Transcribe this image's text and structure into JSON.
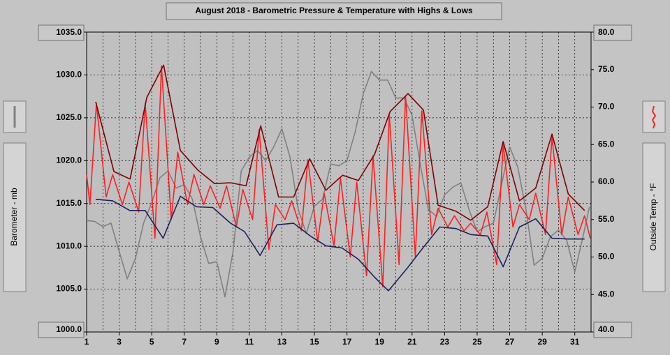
{
  "chart_data": {
    "type": "line",
    "title": "August 2018 - Barometric Pressure & Temperature with Highs & Lows",
    "y_label": "Barometer - mb",
    "y2_label": "Outside Temp - °F",
    "xlim": [
      1,
      32
    ],
    "xticks": [
      1,
      3,
      5,
      7,
      9,
      11,
      13,
      15,
      17,
      19,
      21,
      23,
      25,
      27,
      29,
      31
    ],
    "ylim": [
      1000,
      1035
    ],
    "yticks": [
      {
        "value": 1000,
        "label": "1000.0"
      },
      {
        "value": 1005,
        "label": "1005.0"
      },
      {
        "value": 1010,
        "label": "1010.0"
      },
      {
        "value": 1015,
        "label": "1015.0"
      },
      {
        "value": 1020,
        "label": "1020.0"
      },
      {
        "value": 1025,
        "label": "1025.0"
      },
      {
        "value": 1030,
        "label": "1030.0"
      },
      {
        "value": 1035,
        "label": "1035.0"
      }
    ],
    "y2lim": [
      40,
      80
    ],
    "y2ticks": [
      {
        "value": 40,
        "label": "40.0"
      },
      {
        "value": 45,
        "label": "45.0"
      },
      {
        "value": 50,
        "label": "50.0"
      },
      {
        "value": 55,
        "label": "55.0"
      },
      {
        "value": 60,
        "label": "60.0"
      },
      {
        "value": 65,
        "label": "65.0"
      },
      {
        "value": 70,
        "label": "70.0"
      },
      {
        "value": 75,
        "label": "75.0"
      },
      {
        "value": 80,
        "label": "80.0"
      }
    ],
    "grid": true,
    "series": [
      {
        "color": "#808080",
        "axis": "y",
        "x": [
          1,
          1.5,
          2,
          2.5,
          3,
          3.5,
          4,
          4.5,
          5,
          5.5,
          6,
          6.5,
          7,
          7.5,
          8,
          8.5,
          9,
          9.5,
          10,
          10.5,
          11,
          11.5,
          12,
          12.5,
          13,
          13.5,
          14,
          14.5,
          15,
          15.5,
          16,
          16.5,
          17,
          17.5,
          18,
          18.5,
          19,
          19.5,
          20,
          20.5,
          21,
          21.5,
          22,
          22.5,
          23,
          23.5,
          24,
          24.5,
          25,
          25.5,
          26,
          26.5,
          27,
          27.5,
          28,
          28.5,
          29,
          29.5,
          30,
          30.5,
          31,
          31.5,
          31.9
        ],
        "values": [
          1013.0,
          1012.9,
          1012.3,
          1012.7,
          1009.4,
          1006.2,
          1008.6,
          1012.7,
          1015.1,
          1018.0,
          1018.8,
          1016.8,
          1017.2,
          1015.5,
          1011.1,
          1008.0,
          1008.2,
          1004.1,
          1009.4,
          1018.8,
          1020.4,
          1021.2,
          1020.0,
          1021.6,
          1023.7,
          1020.4,
          1014.3,
          1011.5,
          1014.7,
          1015.5,
          1019.6,
          1019.4,
          1020.0,
          1023.3,
          1027.8,
          1030.4,
          1029.4,
          1029.4,
          1027.3,
          1027.3,
          1025.3,
          1019.6,
          1014.3,
          1013.5,
          1016.0,
          1016.9,
          1017.4,
          1014.3,
          1011.7,
          1012.3,
          1012.7,
          1017.2,
          1021.6,
          1019.2,
          1014.3,
          1007.8,
          1008.6,
          1011.1,
          1011.9,
          1010.7,
          1007.0,
          1011.1,
          1014.6
        ]
      },
      {
        "color": "#ff2020",
        "axis": "y2",
        "x": [
          1,
          1.2,
          1.6,
          2.2,
          2.6,
          3.2,
          3.6,
          4.2,
          4.6,
          5.2,
          5.6,
          6.2,
          6.6,
          7.2,
          7.6,
          8.2,
          8.6,
          9.2,
          9.6,
          10.2,
          10.6,
          11.2,
          11.6,
          12.2,
          12.6,
          13.2,
          13.6,
          14.2,
          14.6,
          15.2,
          15.6,
          16.2,
          16.6,
          17.2,
          17.6,
          18.2,
          18.6,
          19.2,
          19.6,
          20.2,
          20.6,
          21.2,
          21.6,
          22.2,
          22.6,
          23.2,
          23.6,
          24.2,
          24.6,
          25.2,
          25.6,
          26.2,
          26.6,
          27.2,
          27.6,
          28.2,
          28.6,
          29.2,
          29.6,
          30.2,
          30.6,
          31.2,
          31.6,
          31.95
        ],
        "values": [
          61,
          57,
          70.5,
          58,
          61,
          57,
          60,
          56,
          70.5,
          52.5,
          75.5,
          55,
          64,
          57,
          61,
          57,
          59.5,
          56.5,
          59.5,
          54,
          59,
          55,
          67,
          51,
          57,
          55,
          57.5,
          53.5,
          63,
          52,
          58.5,
          51.5,
          60.5,
          50,
          60,
          47.5,
          63.5,
          46,
          69,
          49,
          71.5,
          50,
          69.5,
          53,
          56.5,
          54,
          55.5,
          53.5,
          54.5,
          53,
          56,
          49,
          65,
          54,
          57,
          55,
          58.5,
          53,
          66,
          53,
          58,
          53,
          55.5,
          52.5
        ]
      },
      {
        "color": "#800000",
        "axis": "y2",
        "x": [
          1.56,
          2.68,
          3.67,
          4.7,
          5.73,
          6.76,
          7.83,
          8.86,
          9.85,
          10.8,
          11.7,
          12.8,
          13.72,
          14.71,
          15.7,
          16.73,
          17.7,
          18.7,
          19.65,
          20.75,
          21.7,
          22.6,
          23.7,
          24.6,
          25.65,
          26.6,
          27.6,
          28.6,
          29.6,
          30.6,
          31.6
        ],
        "values": [
          70.7,
          61.4,
          60.4,
          71.3,
          75.6,
          64.2,
          61.6,
          59.8,
          59.9,
          59.5,
          67.5,
          58.0,
          58.0,
          63.1,
          58.9,
          60.9,
          60.2,
          63.7,
          69.4,
          71.8,
          69.6,
          56.9,
          56.1,
          54.9,
          56.7,
          65.4,
          57.5,
          59.2,
          66.4,
          58.4,
          56.2
        ]
      },
      {
        "color": "#202060",
        "axis": "y2",
        "x": [
          1.56,
          2.6,
          3.65,
          4.6,
          5.7,
          6.76,
          7.75,
          8.75,
          9.85,
          10.7,
          11.66,
          12.7,
          13.72,
          14.75,
          15.7,
          16.7,
          17.7,
          18.7,
          19.55,
          20.7,
          21.7,
          22.7,
          23.7,
          24.6,
          25.65,
          26.6,
          27.6,
          28.6,
          29.6,
          30.6,
          31.6
        ],
        "values": [
          57.7,
          57.5,
          56.2,
          56.2,
          52.5,
          58.1,
          56.7,
          56.6,
          54.5,
          53.4,
          50.2,
          54.3,
          54.5,
          52.8,
          51.5,
          51.2,
          49.7,
          47.3,
          45.5,
          48.5,
          51.3,
          54.0,
          53.8,
          53.0,
          52.8,
          48.7,
          54.0,
          55.1,
          52.5,
          52.4,
          52.4
        ]
      }
    ]
  }
}
